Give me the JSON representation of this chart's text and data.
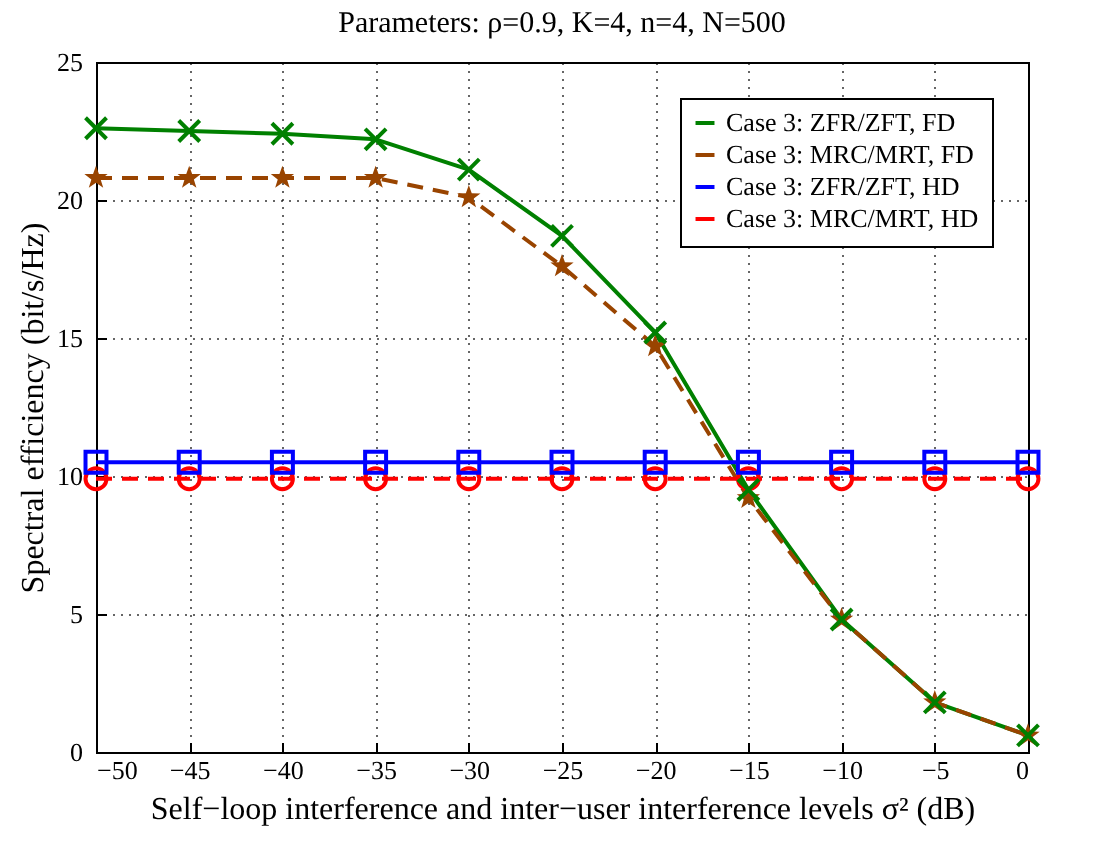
{
  "chart_data": {
    "type": "line",
    "title": "Parameters: ρ=0.9, K=4, n=4, N=500",
    "xlabel": "Self−loop interference and inter−user interference levels σ² (dB)",
    "ylabel": "Spectral efficiency (bit/s/Hz)",
    "x": [
      -50,
      -45,
      -40,
      -35,
      -30,
      -25,
      -20,
      -15,
      -10,
      -5,
      0
    ],
    "series": [
      {
        "name": "Case 3: ZFR/ZFT, FD",
        "color": "#008000",
        "marker": "cross",
        "line_style": "solid",
        "values": [
          22.6,
          22.5,
          22.4,
          22.2,
          21.1,
          18.7,
          15.2,
          9.5,
          4.8,
          1.8,
          0.6
        ]
      },
      {
        "name": "Case 3: MRC/MRT, FD",
        "color": "#994400",
        "marker": "star",
        "line_style": "dashed",
        "values": [
          20.8,
          20.8,
          20.8,
          20.8,
          20.1,
          17.6,
          14.7,
          9.2,
          4.8,
          1.8,
          0.6
        ]
      },
      {
        "name": "Case 3: ZFR/ZFT, HD",
        "color": "#0000ff",
        "marker": "square",
        "line_style": "solid",
        "values": [
          10.5,
          10.5,
          10.5,
          10.5,
          10.5,
          10.5,
          10.5,
          10.5,
          10.5,
          10.5,
          10.5
        ]
      },
      {
        "name": "Case 3: MRC/MRT, HD",
        "color": "#ff0000",
        "marker": "circle",
        "line_style": "dashed",
        "values": [
          9.9,
          9.9,
          9.9,
          9.9,
          9.9,
          9.9,
          9.9,
          9.9,
          9.9,
          9.9,
          9.9
        ]
      }
    ],
    "xlim": [
      -50,
      0
    ],
    "xticks": [
      -50,
      -45,
      -40,
      -35,
      -30,
      -25,
      -20,
      -15,
      -10,
      -5,
      0
    ],
    "ylim": [
      0,
      25
    ],
    "yticks": [
      0,
      5,
      10,
      15,
      20,
      25
    ],
    "grid": true,
    "legend": "top right"
  }
}
